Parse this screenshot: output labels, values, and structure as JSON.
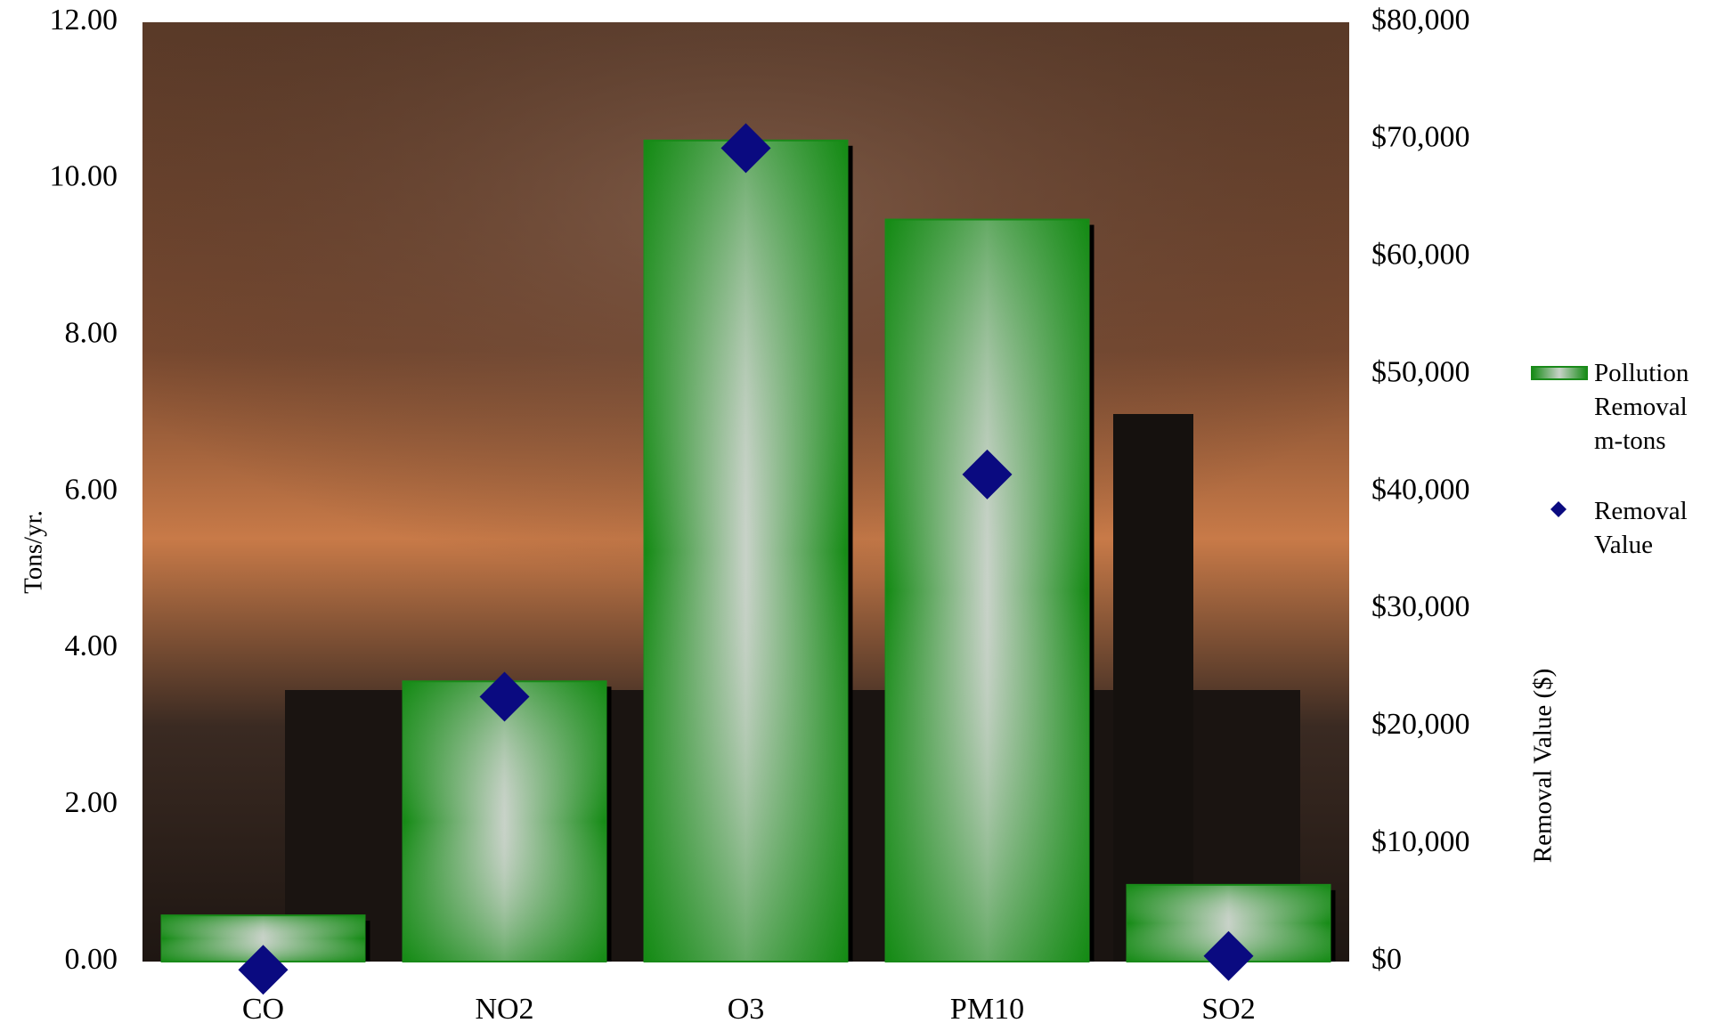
{
  "chart_data": {
    "type": "bar",
    "categories": [
      "CO",
      "NO2",
      "O3",
      "PM10",
      "SO2"
    ],
    "y_label": "Tons/yr.",
    "y2_label": "Removal Value ($)",
    "series": [
      {
        "name": "Pollution Removal m-tons",
        "type": "bar",
        "color": "#1a8a1a",
        "values": [
          0.59,
          3.58,
          10.49,
          9.48,
          0.98
        ]
      },
      {
        "name": "Removal Value",
        "type": "scatter",
        "axis": "y2",
        "color": "#0a0a80",
        "values": [
          -700,
          22560,
          69280,
          41490,
          470
        ]
      }
    ],
    "ylim": [
      0,
      12
    ],
    "yticks": [
      {
        "value": 0,
        "label": "0.00"
      },
      {
        "value": 2,
        "label": "2.00"
      },
      {
        "value": 4,
        "label": "4.00"
      },
      {
        "value": 6,
        "label": "6.00"
      },
      {
        "value": 8,
        "label": "8.00"
      },
      {
        "value": 10,
        "label": "10.00"
      },
      {
        "value": 12,
        "label": "12.00"
      }
    ],
    "y2lim": [
      0,
      80000
    ],
    "y2ticks": [
      {
        "value": 0,
        "label": "$0"
      },
      {
        "value": 10000,
        "label": "$10,000"
      },
      {
        "value": 20000,
        "label": "$20,000"
      },
      {
        "value": 30000,
        "label": "$30,000"
      },
      {
        "value": 40000,
        "label": "$40,000"
      },
      {
        "value": 50000,
        "label": "$50,000"
      },
      {
        "value": 60000,
        "label": "$60,000"
      },
      {
        "value": 70000,
        "label": "$70,000"
      },
      {
        "value": 80000,
        "label": "$80,000"
      }
    ],
    "legend": "right"
  }
}
